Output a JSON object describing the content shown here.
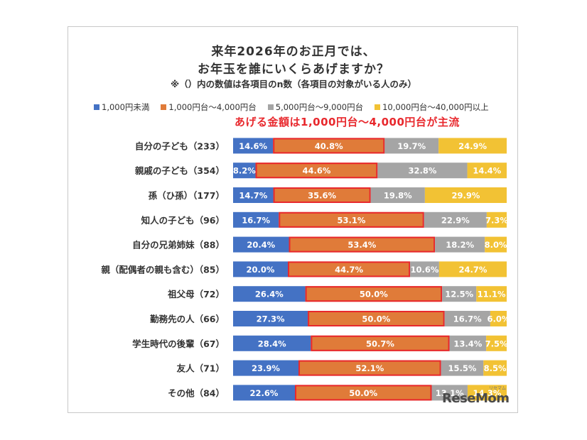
{
  "chart_data": {
    "type": "bar",
    "stacked": true,
    "orientation": "horizontal",
    "title_line1": "来年2026年のお正月では、",
    "title_line2": "お年玉を誰にいくらあげますか？",
    "note": "※（）内の数値は各項目のn数（各項目の対象がいる人のみ）",
    "callout": "あげる金額は1,000円台～4,000円台が主流",
    "xlim": [
      0,
      100
    ],
    "categories": [
      "自分の子ども（233）",
      "親戚の子ども（354）",
      "孫（ひ孫）（177）",
      "知人の子ども（96）",
      "自分の兄弟姉妹（88）",
      "親（配偶者の親も含む）（85）",
      "祖父母（72）",
      "勤務先の人（66）",
      "学生時代の後輩（67）",
      "友人（71）",
      "その他（84）"
    ],
    "series": [
      {
        "name": "1,000円未満",
        "color": "#4472c4",
        "values": [
          14.6,
          8.2,
          14.7,
          16.7,
          20.4,
          20.0,
          26.4,
          27.3,
          28.4,
          23.9,
          22.6
        ],
        "labels": [
          "14.6%",
          "8.2%",
          "14.7%",
          "16.7%",
          "20.4%",
          "20.0%",
          "26.4%",
          "27.3%",
          "28.4%",
          "23.9%",
          "22.6%"
        ]
      },
      {
        "name": "1,000円台～4,000円台",
        "color": "#e07b39",
        "values": [
          40.8,
          44.6,
          35.6,
          53.1,
          53.4,
          44.7,
          50.0,
          50.0,
          50.7,
          52.1,
          50.0
        ],
        "labels": [
          "40.8%",
          "44.6%",
          "35.6%",
          "53.1%",
          "53.4%",
          "44.7%",
          "50.0%",
          "50.0%",
          "50.7%",
          "52.1%",
          "50.0%"
        ]
      },
      {
        "name": "5,000円台～9,000円台",
        "color": "#a5a5a5",
        "values": [
          19.7,
          32.8,
          19.8,
          22.9,
          18.2,
          10.6,
          12.5,
          16.7,
          13.4,
          15.5,
          13.1
        ],
        "labels": [
          "19.7%",
          "32.8%",
          "19.8%",
          "22.9%",
          "18.2%",
          "10.6%",
          "12.5%",
          "16.7%",
          "13.4%",
          "15.5%",
          "13.1%"
        ]
      },
      {
        "name": "10,000円台～40,000円以上",
        "color": "#f2c234",
        "values": [
          24.9,
          14.4,
          29.9,
          7.3,
          8.0,
          24.7,
          11.1,
          6.0,
          7.5,
          8.5,
          14.3
        ],
        "labels": [
          "24.9%",
          "14.4%",
          "29.9%",
          "7.3%",
          "8.0%",
          "24.7%",
          "11.1%",
          "6.0%",
          "7.5%",
          "8.5%",
          "14.3%"
        ]
      }
    ],
    "highlight_series": 1,
    "highlight_color": "#e8282d"
  },
  "logo": "ReseMom",
  "logo_ruby": "リセマム"
}
